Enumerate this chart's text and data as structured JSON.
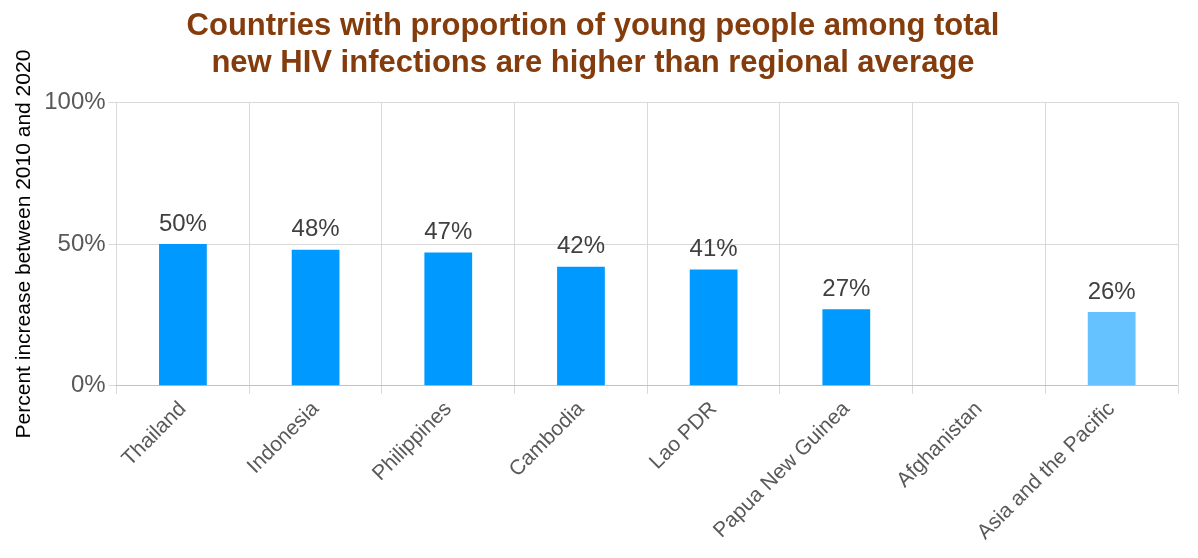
{
  "chart_data": {
    "type": "bar",
    "title": [
      "Countries with proportion of young people among total",
      "new HIV infections are higher than regional average"
    ],
    "ylabel": "Percent increase between 2010 and 2020",
    "categories": [
      "Thailand",
      "Indonesia",
      "Philippines",
      "Cambodia",
      "Lao PDR",
      "Papua New Guinea",
      "Afghanistan",
      "Asia and the Pacific"
    ],
    "values": [
      50,
      48,
      47,
      42,
      41,
      27,
      null,
      26
    ],
    "value_labels": [
      "50%",
      "48%",
      "47%",
      "42%",
      "41%",
      "27%",
      null,
      "26%"
    ],
    "colors": [
      "#0099ff",
      "#0099ff",
      "#0099ff",
      "#0099ff",
      "#0099ff",
      "#0099ff",
      "#0099ff",
      "#66c2ff"
    ],
    "ylim": [
      0,
      100
    ],
    "yticks": [
      {
        "value": 0,
        "label": "0%"
      },
      {
        "value": 50,
        "label": "50%"
      },
      {
        "value": 100,
        "label": "100%"
      }
    ],
    "grid": true,
    "legend": false
  }
}
